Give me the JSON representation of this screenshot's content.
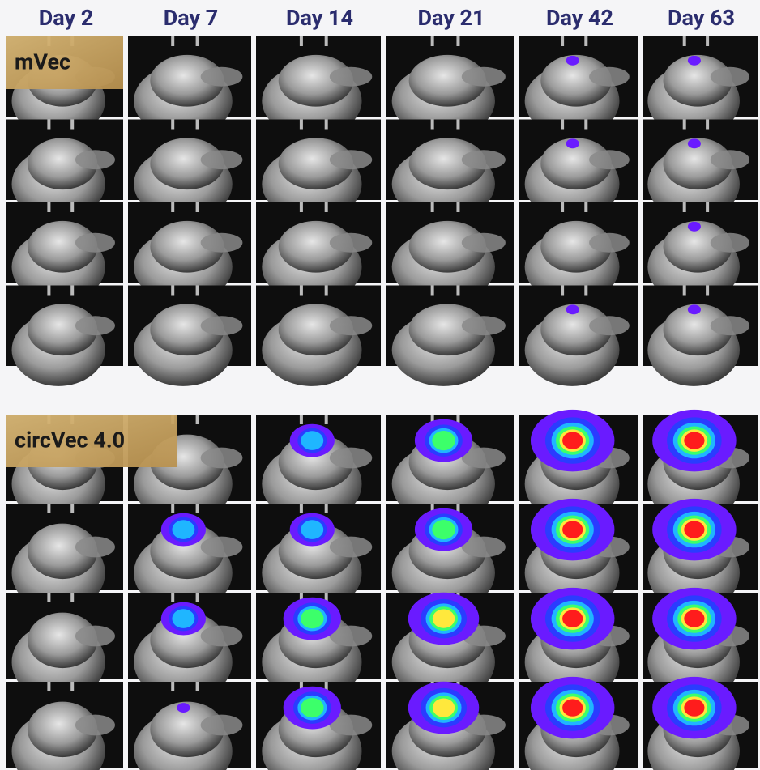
{
  "columns": [
    "Day 2",
    "Day 7",
    "Day 14",
    "Day 21",
    "Day 42",
    "Day 63"
  ],
  "groups": [
    {
      "label": "mVec"
    },
    {
      "label": "circVec 4.0"
    }
  ]
}
